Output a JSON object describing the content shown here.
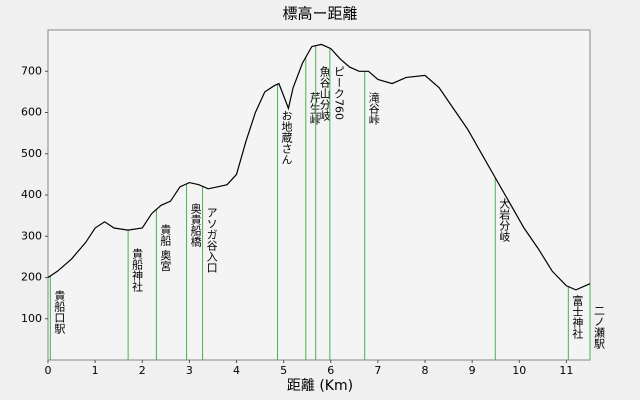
{
  "chart_data": {
    "type": "line",
    "title": "標高ー距離",
    "x_label": "距離 (Km)",
    "x": [
      0,
      0.2,
      0.5,
      0.8,
      1.0,
      1.2,
      1.4,
      1.7,
      2.0,
      2.2,
      2.4,
      2.6,
      2.8,
      3.0,
      3.2,
      3.4,
      3.6,
      3.8,
      4.0,
      4.2,
      4.4,
      4.6,
      4.8,
      4.9,
      5.0,
      5.1,
      5.2,
      5.4,
      5.6,
      5.8,
      6.0,
      6.2,
      6.4,
      6.6,
      6.8,
      7.0,
      7.3,
      7.6,
      8.0,
      8.3,
      8.6,
      8.9,
      9.2,
      9.5,
      9.8,
      10.1,
      10.4,
      10.7,
      11.0,
      11.2,
      11.5
    ],
    "series": [
      {
        "color": "#000000",
        "values": [
          200,
          215,
          245,
          285,
          320,
          335,
          320,
          315,
          320,
          355,
          375,
          385,
          420,
          430,
          425,
          415,
          420,
          425,
          450,
          530,
          600,
          650,
          665,
          670,
          640,
          610,
          660,
          720,
          760,
          765,
          755,
          730,
          710,
          700,
          700,
          680,
          670,
          685,
          690,
          660,
          610,
          560,
          500,
          440,
          380,
          320,
          270,
          215,
          180,
          170,
          185
        ]
      }
    ],
    "landmarks": [
      {
        "label": "貴船口駅",
        "x": 0.05
      },
      {
        "label": "貴船神社",
        "x": 1.7
      },
      {
        "label": "貴船 奥宮",
        "x": 2.3
      },
      {
        "label": "奥貴船橋",
        "x": 2.94
      },
      {
        "label": "アソガ谷入口",
        "x": 3.28
      },
      {
        "label": "お地蔵さん",
        "x": 4.87
      },
      {
        "label": "芹生峠",
        "x": 5.47
      },
      {
        "label": "魚谷山分岐",
        "x": 5.68
      },
      {
        "label": "ピーク760",
        "x": 5.98
      },
      {
        "label": "滝谷峠",
        "x": 6.72
      },
      {
        "label": "大岩分岐",
        "x": 9.49
      },
      {
        "label": "富士神社",
        "x": 11.04
      },
      {
        "label": "二ノ瀬駅",
        "x": 11.5
      }
    ],
    "landmark_color": "#4caf50",
    "xlim": [
      0,
      11.5
    ],
    "ylim": [
      0,
      800
    ],
    "xticks": [
      0,
      1,
      2,
      3,
      4,
      5,
      6,
      7,
      8,
      9,
      10,
      11
    ],
    "yticks": [
      100,
      200,
      300,
      400,
      500,
      600,
      700
    ]
  }
}
